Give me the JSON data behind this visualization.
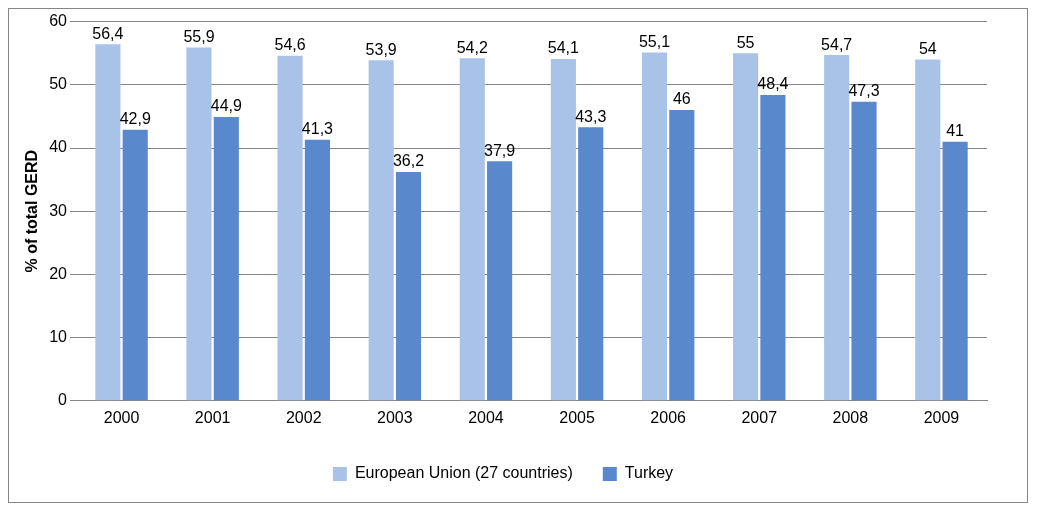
{
  "chart_data": {
    "type": "bar",
    "ylabel": "% of total GERD",
    "categories": [
      "2000",
      "2001",
      "2002",
      "2003",
      "2004",
      "2005",
      "2006",
      "2007",
      "2008",
      "2009"
    ],
    "series": [
      {
        "name": "European Union (27 countries)",
        "color": "#a9c3e8",
        "values": [
          56.4,
          55.9,
          54.6,
          53.9,
          54.2,
          54.1,
          55.1,
          55,
          54.7,
          54
        ],
        "value_labels": [
          "56,4",
          "55,9",
          "54,6",
          "53,9",
          "54,2",
          "54,1",
          "55,1",
          "55",
          "54,7",
          "54"
        ]
      },
      {
        "name": "Turkey",
        "color": "#5a88cc",
        "values": [
          42.9,
          44.9,
          41.3,
          36.2,
          37.9,
          43.3,
          46,
          48.4,
          47.3,
          41
        ],
        "value_labels": [
          "42,9",
          "44,9",
          "41,3",
          "36,2",
          "37,9",
          "43,3",
          "46",
          "48,4",
          "47,3",
          "41"
        ]
      }
    ],
    "ylim": [
      0,
      60
    ],
    "yticks": [
      0,
      10,
      20,
      30,
      40,
      50,
      60
    ],
    "grid": "y",
    "legend": "bottom"
  }
}
